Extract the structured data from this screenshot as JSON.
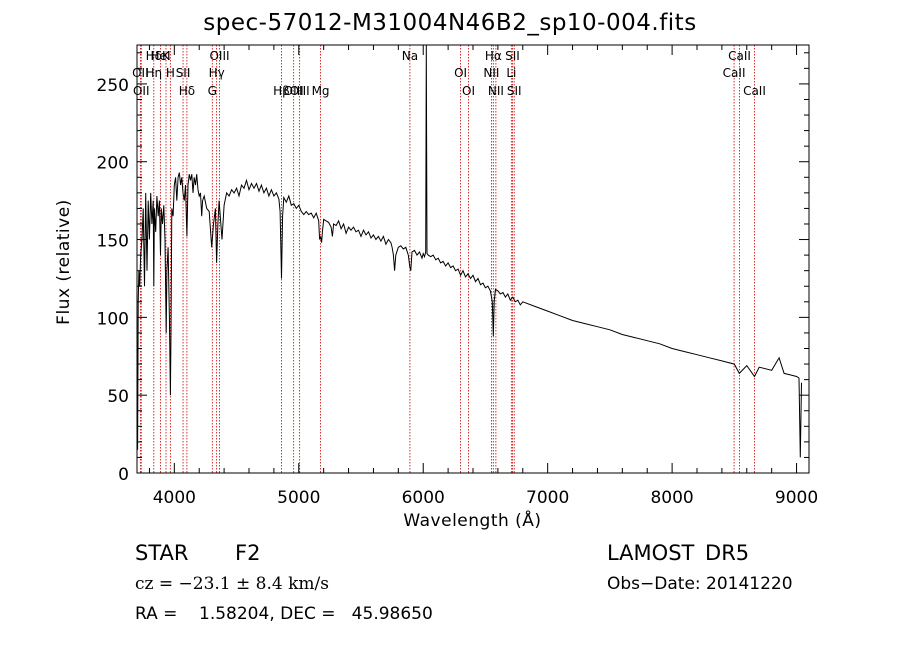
{
  "chart_data": {
    "type": "line",
    "title": "spec-57012-M31004N46B2_sp10-004.fits",
    "xlabel": "Wavelength (Å)",
    "ylabel": "Flux (relative)",
    "xlim": [
      3700,
      9100
    ],
    "ylim": [
      0,
      275
    ],
    "x_ticks": [
      4000,
      5000,
      6000,
      7000,
      8000,
      9000
    ],
    "y_ticks": [
      0,
      50,
      100,
      150,
      200,
      250
    ],
    "grid": false,
    "line_color": "#000000",
    "marker_color": "#cc0000",
    "series": [
      {
        "points": [
          [
            3705,
            15
          ],
          [
            3710,
            110
          ],
          [
            3715,
            130
          ],
          [
            3722,
            120
          ],
          [
            3730,
            140
          ],
          [
            3740,
            150
          ],
          [
            3750,
            170
          ],
          [
            3760,
            120
          ],
          [
            3770,
            180
          ],
          [
            3780,
            130
          ],
          [
            3790,
            175
          ],
          [
            3800,
            150
          ],
          [
            3810,
            180
          ],
          [
            3820,
            160
          ],
          [
            3830,
            175
          ],
          [
            3835,
            120
          ],
          [
            3840,
            170
          ],
          [
            3850,
            155
          ],
          [
            3860,
            178
          ],
          [
            3870,
            165
          ],
          [
            3880,
            175
          ],
          [
            3889,
            140
          ],
          [
            3895,
            170
          ],
          [
            3905,
            160
          ],
          [
            3915,
            172
          ],
          [
            3925,
            150
          ],
          [
            3935,
            90
          ],
          [
            3940,
            130
          ],
          [
            3950,
            145
          ],
          [
            3960,
            100
          ],
          [
            3968,
            50
          ],
          [
            3973,
            90
          ],
          [
            3980,
            170
          ],
          [
            3990,
            165
          ],
          [
            4000,
            185
          ],
          [
            4010,
            190
          ],
          [
            4020,
            175
          ],
          [
            4030,
            190
          ],
          [
            4040,
            193
          ],
          [
            4050,
            185
          ],
          [
            4060,
            190
          ],
          [
            4070,
            180
          ],
          [
            4080,
            175
          ],
          [
            4090,
            185
          ],
          [
            4101,
            152
          ],
          [
            4110,
            185
          ],
          [
            4120,
            192
          ],
          [
            4130,
            188
          ],
          [
            4140,
            192
          ],
          [
            4150,
            180
          ],
          [
            4160,
            190
          ],
          [
            4170,
            185
          ],
          [
            4180,
            192
          ],
          [
            4190,
            182
          ],
          [
            4200,
            178
          ],
          [
            4210,
            180
          ],
          [
            4220,
            165
          ],
          [
            4227,
            175
          ],
          [
            4240,
            178
          ],
          [
            4260,
            170
          ],
          [
            4280,
            168
          ],
          [
            4300,
            145
          ],
          [
            4315,
            160
          ],
          [
            4330,
            170
          ],
          [
            4340,
            135
          ],
          [
            4350,
            160
          ],
          [
            4360,
            175
          ],
          [
            4383,
            150
          ],
          [
            4400,
            172
          ],
          [
            4420,
            180
          ],
          [
            4440,
            178
          ],
          [
            4460,
            182
          ],
          [
            4480,
            180
          ],
          [
            4500,
            183
          ],
          [
            4520,
            178
          ],
          [
            4540,
            185
          ],
          [
            4560,
            183
          ],
          [
            4580,
            188
          ],
          [
            4600,
            182
          ],
          [
            4620,
            186
          ],
          [
            4640,
            183
          ],
          [
            4660,
            186
          ],
          [
            4680,
            181
          ],
          [
            4700,
            185
          ],
          [
            4720,
            180
          ],
          [
            4740,
            183
          ],
          [
            4760,
            178
          ],
          [
            4780,
            182
          ],
          [
            4800,
            178
          ],
          [
            4820,
            180
          ],
          [
            4840,
            176
          ],
          [
            4850,
            168
          ],
          [
            4861,
            125
          ],
          [
            4870,
            165
          ],
          [
            4880,
            177
          ],
          [
            4900,
            174
          ],
          [
            4920,
            178
          ],
          [
            4940,
            172
          ],
          [
            4960,
            173
          ],
          [
            4980,
            170
          ],
          [
            5000,
            172
          ],
          [
            5020,
            168
          ],
          [
            5040,
            166
          ],
          [
            5060,
            168
          ],
          [
            5080,
            166
          ],
          [
            5100,
            167
          ],
          [
            5120,
            164
          ],
          [
            5140,
            167
          ],
          [
            5160,
            162
          ],
          [
            5167,
            150
          ],
          [
            5175,
            152
          ],
          [
            5183,
            148
          ],
          [
            5190,
            155
          ],
          [
            5200,
            163
          ],
          [
            5220,
            162
          ],
          [
            5240,
            161
          ],
          [
            5260,
            158
          ],
          [
            5270,
            152
          ],
          [
            5280,
            160
          ],
          [
            5300,
            159
          ],
          [
            5320,
            162
          ],
          [
            5340,
            157
          ],
          [
            5360,
            160
          ],
          [
            5380,
            154
          ],
          [
            5400,
            158
          ],
          [
            5420,
            156
          ],
          [
            5440,
            158
          ],
          [
            5460,
            155
          ],
          [
            5480,
            156
          ],
          [
            5500,
            152
          ],
          [
            5520,
            156
          ],
          [
            5540,
            153
          ],
          [
            5560,
            155
          ],
          [
            5580,
            151
          ],
          [
            5600,
            153
          ],
          [
            5620,
            150
          ],
          [
            5640,
            152
          ],
          [
            5660,
            149
          ],
          [
            5680,
            152
          ],
          [
            5700,
            147
          ],
          [
            5720,
            150
          ],
          [
            5740,
            148
          ],
          [
            5750,
            145
          ],
          [
            5760,
            140
          ],
          [
            5770,
            130
          ],
          [
            5780,
            140
          ],
          [
            5800,
            145
          ],
          [
            5820,
            146
          ],
          [
            5840,
            144
          ],
          [
            5860,
            145
          ],
          [
            5880,
            140
          ],
          [
            5893,
            132
          ],
          [
            5900,
            130
          ],
          [
            5910,
            142
          ],
          [
            5930,
            143
          ],
          [
            5950,
            140
          ],
          [
            5970,
            142
          ],
          [
            5990,
            138
          ],
          [
            6000,
            141
          ],
          [
            6010,
            139
          ],
          [
            6020,
            142
          ],
          [
            6025,
            275
          ],
          [
            6030,
            141
          ],
          [
            6040,
            140
          ],
          [
            6060,
            139
          ],
          [
            6080,
            140
          ],
          [
            6100,
            137
          ],
          [
            6120,
            138
          ],
          [
            6140,
            135
          ],
          [
            6160,
            136
          ],
          [
            6180,
            133
          ],
          [
            6200,
            135
          ],
          [
            6220,
            132
          ],
          [
            6240,
            133
          ],
          [
            6260,
            130
          ],
          [
            6280,
            131
          ],
          [
            6300,
            127
          ],
          [
            6320,
            130
          ],
          [
            6340,
            126
          ],
          [
            6360,
            128
          ],
          [
            6380,
            125
          ],
          [
            6400,
            127
          ],
          [
            6420,
            123
          ],
          [
            6440,
            125
          ],
          [
            6460,
            121
          ],
          [
            6480,
            122
          ],
          [
            6500,
            119
          ],
          [
            6520,
            120
          ],
          [
            6540,
            117
          ],
          [
            6555,
            110
          ],
          [
            6563,
            88
          ],
          [
            6570,
            110
          ],
          [
            6580,
            118
          ],
          [
            6600,
            117
          ],
          [
            6620,
            115
          ],
          [
            6640,
            116
          ],
          [
            6660,
            113
          ],
          [
            6680,
            115
          ],
          [
            6700,
            111
          ],
          [
            6720,
            113
          ],
          [
            6740,
            110
          ],
          [
            6760,
            111
          ],
          [
            6780,
            108
          ],
          [
            6800,
            110
          ],
          [
            6900,
            107
          ],
          [
            7000,
            104
          ],
          [
            7100,
            101
          ],
          [
            7200,
            98
          ],
          [
            7300,
            96
          ],
          [
            7400,
            94
          ],
          [
            7500,
            92
          ],
          [
            7600,
            89
          ],
          [
            7700,
            87
          ],
          [
            7800,
            85
          ],
          [
            7900,
            83
          ],
          [
            8000,
            80
          ],
          [
            8100,
            78
          ],
          [
            8200,
            76
          ],
          [
            8300,
            74
          ],
          [
            8400,
            72
          ],
          [
            8500,
            70
          ],
          [
            8540,
            64
          ],
          [
            8600,
            69
          ],
          [
            8662,
            62
          ],
          [
            8700,
            68
          ],
          [
            8800,
            66
          ],
          [
            8860,
            74
          ],
          [
            8900,
            64
          ],
          [
            8950,
            63
          ],
          [
            9000,
            62
          ],
          [
            9020,
            61
          ],
          [
            9030,
            10
          ],
          [
            9040,
            58
          ]
        ]
      }
    ],
    "lines": [
      {
        "label": "Hδ",
        "wavelength": 3835
      },
      {
        "label": "OII",
        "wavelength": 3727
      },
      {
        "label": "OII",
        "wavelength": 3734
      },
      {
        "label": "Hη",
        "wavelength": 3835
      },
      {
        "label": "K",
        "wavelength": 3933
      },
      {
        "label": "HeI",
        "wavelength": 3889
      },
      {
        "label": "H",
        "wavelength": 3968
      },
      {
        "label": "SII",
        "wavelength": 4070
      },
      {
        "label": "Hδ",
        "wavelength": 4101
      },
      {
        "label": "OIII",
        "wavelength": 4363
      },
      {
        "label": "Hγ",
        "wavelength": 4340
      },
      {
        "label": "G",
        "wavelength": 4305
      },
      {
        "label": "OIII",
        "wavelength": 5007
      },
      {
        "label": "OIII",
        "wavelength": 4959
      },
      {
        "label": "Hβ",
        "wavelength": 4861
      },
      {
        "label": "Mg",
        "wavelength": 5175
      },
      {
        "label": "Na",
        "wavelength": 5893
      },
      {
        "label": "OI",
        "wavelength": 6300
      },
      {
        "label": "OI",
        "wavelength": 6364
      },
      {
        "label": "Hα",
        "wavelength": 6563
      },
      {
        "label": "NII",
        "wavelength": 6548
      },
      {
        "label": "NII",
        "wavelength": 6584
      },
      {
        "label": "SII",
        "wavelength": 6717
      },
      {
        "label": "Li",
        "wavelength": 6708
      },
      {
        "label": "SII",
        "wavelength": 6731
      },
      {
        "label": "CaII",
        "wavelength": 8542
      },
      {
        "label": "CaII",
        "wavelength": 8498
      },
      {
        "label": "CaII",
        "wavelength": 8662
      }
    ],
    "info": {
      "class": "STAR",
      "subclass": "F2",
      "survey": "LAMOST DR5",
      "cz": "cz = −23.1 ± 8.4 km/s",
      "obs_date": "Obs−Date: 20141220",
      "ra_dec": "RA =    1.58204, DEC =   45.98650"
    }
  }
}
